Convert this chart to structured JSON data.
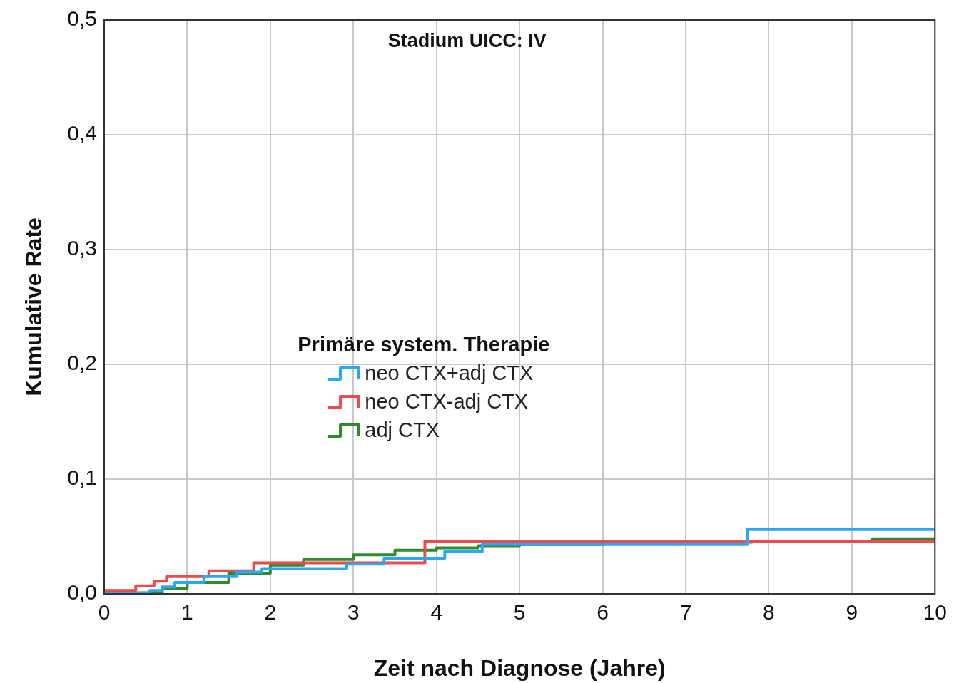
{
  "chart_data": {
    "type": "step",
    "title": "Stadium UICC: IV",
    "xlabel": "Zeit nach Diagnose (Jahre)",
    "ylabel": "Kumulative Rate",
    "legend_title": "Primäre system. Therapie",
    "legend": "center left",
    "grid": true,
    "xlim": [
      0,
      10
    ],
    "xticks": [
      0,
      1,
      2,
      3,
      4,
      5,
      6,
      7,
      8,
      9,
      10
    ],
    "ylim": [
      0,
      0.5
    ],
    "yticks": [
      {
        "value": 0,
        "label": "0,0"
      },
      {
        "value": 0.1,
        "label": "0,1"
      },
      {
        "value": 0.2,
        "label": "0,2"
      },
      {
        "value": 0.3,
        "label": "0,3"
      },
      {
        "value": 0.4,
        "label": "0,4"
      },
      {
        "value": 0.5,
        "label": "0,5"
      }
    ],
    "series": [
      {
        "name": "neo CTX+adj CTX",
        "color": "#2aa8f5",
        "x": [
          0,
          0.55,
          0.7,
          0.85,
          1.2,
          1.6,
          1.9,
          2.92,
          3.37,
          4.1,
          4.55,
          7.74,
          10
        ],
        "values": [
          0,
          0.003,
          0.006,
          0.01,
          0.015,
          0.019,
          0.022,
          0.026,
          0.031,
          0.037,
          0.043,
          0.056,
          0.056
        ]
      },
      {
        "name": "neo CTX-adj CTX",
        "color": "#ec4b4b",
        "x": [
          0,
          0.38,
          0.6,
          0.75,
          1.26,
          1.8,
          3.86,
          10
        ],
        "values": [
          0.003,
          0.007,
          0.011,
          0.015,
          0.02,
          0.027,
          0.046,
          0.046
        ]
      },
      {
        "name": "adj CTX",
        "color": "#2e8b2e",
        "x": [
          0,
          0.4,
          0.7,
          1,
          1.5,
          2,
          2.4,
          3,
          3.5,
          4,
          4.5,
          5,
          6,
          7,
          7.8,
          9.25,
          10
        ],
        "values": [
          0,
          0.001,
          0.005,
          0.01,
          0.018,
          0.025,
          0.03,
          0.034,
          0.038,
          0.04,
          0.042,
          0.043,
          0.044,
          0.045,
          0.046,
          0.048,
          0.048
        ]
      }
    ]
  }
}
